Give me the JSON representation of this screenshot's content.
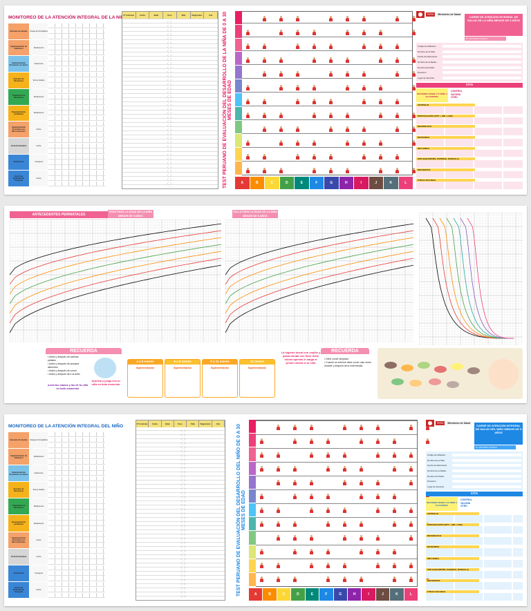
{
  "panel_top": {
    "monitoreo_title": "MONITOREO DE LA ATENCIÓN INTEGRAL DE LA NIÑA",
    "dev_title": "TEST PERUANO DE EVALUACIÓN DEL DESARROLLO DE LA NIÑA DE 0 A 30 MESES DE EDAD",
    "carne_title": "CARNÉ DE ATENCIÓN INTEGRAL DE SALUD DE LA NIÑA MENOR DE 5 AÑOS",
    "num_label": "N° HISTORIA CLÍNICA",
    "cita": "CITA",
    "reminder": "RECUERDA TRAER A TU NIÑA A SU CONTROL",
    "control": "CONTROL\nVACUNA\nOTRO"
  },
  "panel_bottom": {
    "monitoreo_title": "MONITOREO DE LA ATENCIÓN INTEGRAL DEL NIÑO",
    "dev_title": "TEST PERUANO DE EVALUACIÓN DEL DESARROLLO DEL NIÑO DE 0 A 30 MESES DE EDAD",
    "carne_title": "CARNÉ DE ATENCIÓN INTEGRAL DE SALUD DEL NIÑO MENOR DE 5 AÑOS",
    "num_label": "N° HISTORIA CLÍNICA",
    "cita": "CITA",
    "reminder": "RECUERDA TRAER A TU NIÑO A SU CONTROL",
    "control": "CONTROL\nVACUNA\nOTRO"
  },
  "ministerio": "Ministerio de Salud",
  "peru": "PERÚ",
  "monitoreo_categories": [
    {
      "name": "Descarte de Anemia",
      "color": "#f4a16a",
      "sub": "Dosaje de Hemoglobina"
    },
    {
      "name": "Suplementación de Vitamina A",
      "color": "#f4a16a",
      "sub": "Medicamento"
    },
    {
      "name": "Suplementación Preventiva con Hierro",
      "color": "#7cc1e8",
      "sub": "Suplemento"
    },
    {
      "name": "Descarte de Parasitosis",
      "color": "#f5b21a",
      "sub": "Test de Graham"
    },
    {
      "name": "Tratamiento de Parasitosis",
      "color": "#33a852",
      "sub": "Medicamento"
    },
    {
      "name": "Desparasitación profiláctica",
      "color": "#f5b21a",
      "sub": "Medicamento"
    },
    {
      "name": "Suplementación Preventiva con Micronutrientes",
      "color": "#f4a16a",
      "sub": "Fecha"
    },
    {
      "name": "Visita Domiciliaria",
      "color": "#d6d6d6",
      "sub": "Fecha"
    },
    {
      "name": "Salud Bucal",
      "color": "#3a86d6",
      "sub": "Consejería"
    },
    {
      "name": "Sesión de Estimulación Temprana",
      "color": "#3a86d6",
      "sub": "Fecha"
    }
  ],
  "control_headers": [
    "N° Controles",
    "Fecha",
    "Edad",
    "Peso",
    "Talla",
    "Diagnóstico",
    "Cita"
  ],
  "dev_legend": [
    {
      "label": "A",
      "color": "#e53935"
    },
    {
      "label": "B",
      "color": "#fb8c00"
    },
    {
      "label": "C",
      "color": "#fdd835"
    },
    {
      "label": "D",
      "color": "#43a047"
    },
    {
      "label": "E",
      "color": "#00897b"
    },
    {
      "label": "F",
      "color": "#1e88e5"
    },
    {
      "label": "G",
      "color": "#3949ab"
    },
    {
      "label": "H",
      "color": "#8e24aa"
    },
    {
      "label": "I",
      "color": "#d81b60"
    },
    {
      "label": "J",
      "color": "#6d4c41"
    },
    {
      "label": "K",
      "color": "#546e7a"
    },
    {
      "label": "L",
      "color": "#ec407a"
    }
  ],
  "carne_fields": [
    "Código de Afiliación",
    "Nombre de la Niña",
    "Fecha de Nacimiento",
    "Nombre de la Madre",
    "Nombre del Padre",
    "Dirección",
    "Lugar de Atención"
  ],
  "vacunas": [
    "ANTIPOLIO",
    "PENTAVALENTE (DPT + HIB + HVB)",
    "NEUMOCOCO",
    "ROTAVIRUS",
    "INFLUENZA",
    "SPR (SARAMPIÓN, PAPERAS, RUBEOLA)",
    "REFUERZOS",
    "OTRAS VACUNAS"
  ],
  "growth": {
    "antecedentes": "ANTECEDENTES PERINATALES",
    "peso_title": "PESO PARA LA EDAD DE LA NIÑA MENOR DE 5 AÑOS",
    "talla_title": "TALLA PARA LA EDAD DE LA NIÑA MENOR DE 5 AÑOS",
    "recuerda": "RECUERDA",
    "manos": "¡Lava tus manos y las de tu niña en todo momento!",
    "acaricia": "Acaricia y juega con tu niña en todo momento",
    "higiene": "La higiene bucal con cepillo y pasta dental con flúor debe iniciar apenas le salga el primer diente a tu niña",
    "supp_ages": [
      "4 a 6 meses",
      "6 a 8 meses",
      "9 a 11 meses",
      "12 meses"
    ],
    "supp_label": "Suplementación"
  }
}
